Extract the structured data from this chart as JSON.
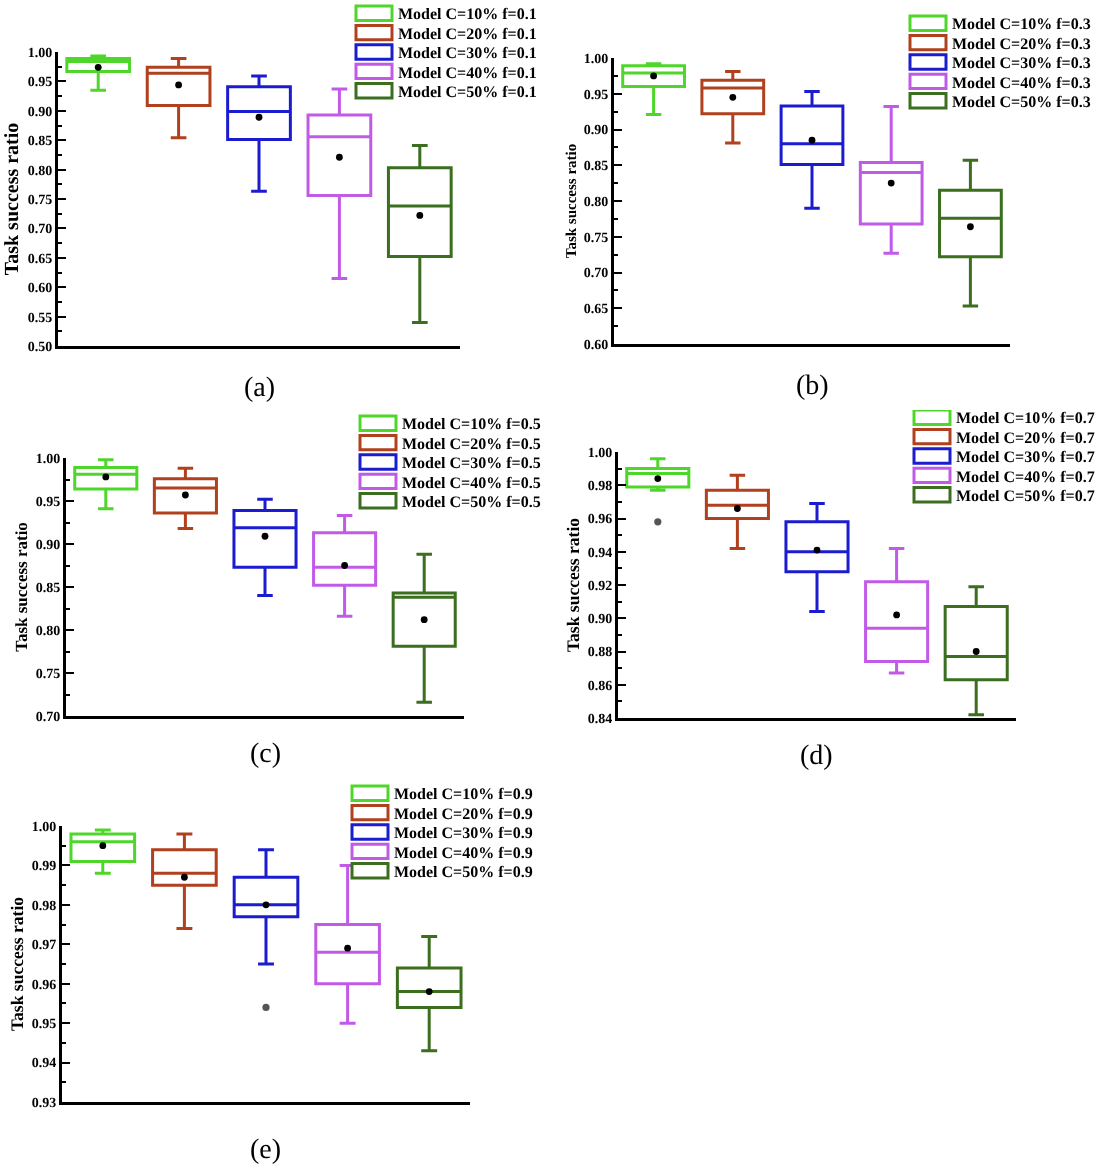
{
  "chart_data": [
    {
      "type": "box",
      "xlabel": "(a)",
      "ylabel": "Task success ratio",
      "categories": [
        null,
        null,
        null,
        null,
        null
      ],
      "ylim": [
        0.5,
        1.0
      ],
      "yticks": [
        {
          "value": 0.5,
          "label": "0.50"
        },
        {
          "value": 0.525,
          "label": null
        },
        0.55,
        {
          "value": 0.575,
          "label": null
        },
        {
          "value": 0.6,
          "label": "0.60"
        },
        {
          "value": 0.625,
          "label": null
        },
        0.65,
        {
          "value": 0.675,
          "label": null
        },
        {
          "value": 0.7,
          "label": "0.70"
        },
        {
          "value": 0.725,
          "label": null
        },
        0.75,
        {
          "value": 0.775,
          "label": null
        },
        {
          "value": 0.8,
          "label": "0.80"
        },
        {
          "value": 0.825,
          "label": null
        },
        0.85,
        {
          "value": 0.875,
          "label": null
        },
        {
          "value": 0.9,
          "label": "0.90"
        },
        {
          "value": 0.925,
          "label": null
        },
        0.95,
        {
          "value": 0.975,
          "label": null
        },
        {
          "value": 1.0,
          "label": "1.00"
        }
      ],
      "tick_labels": "y",
      "legend": "top right",
      "series": [
        {
          "name": "Model C=10% f=0.1",
          "color": "#4fd62b",
          "boxes": [
            {
              "low": 0.935,
              "q1": 0.967,
              "median": 0.984,
              "q3": 0.989,
              "high": 0.993,
              "mean": 0.974
            },
            null,
            null,
            null,
            null
          ]
        },
        {
          "name": "Model C=20% f=0.1",
          "color": "#b0401e",
          "boxes": [
            null,
            {
              "low": 0.854,
              "q1": 0.909,
              "median": 0.964,
              "q3": 0.974,
              "high": 0.989,
              "mean": 0.944
            },
            null,
            null,
            null
          ]
        },
        {
          "name": "Model C=30% f=0.1",
          "color": "#1c1ccf",
          "boxes": [
            null,
            null,
            {
              "low": 0.763,
              "q1": 0.851,
              "median": 0.899,
              "q3": 0.941,
              "high": 0.959,
              "mean": 0.889
            },
            null,
            null
          ]
        },
        {
          "name": "Model C=40% f=0.1",
          "color": "#c25ae8",
          "boxes": [
            null,
            null,
            null,
            {
              "low": 0.615,
              "q1": 0.756,
              "median": 0.856,
              "q3": 0.893,
              "high": 0.937,
              "mean": 0.821
            },
            null
          ]
        },
        {
          "name": "Model C=50% f=0.1",
          "color": "#3b6e1f",
          "boxes": [
            null,
            null,
            null,
            null,
            {
              "low": 0.54,
              "q1": 0.652,
              "median": 0.738,
              "q3": 0.803,
              "high": 0.841,
              "mean": 0.722
            }
          ]
        }
      ]
    },
    {
      "type": "box",
      "xlabel": "(b)",
      "ylabel": "Task success ratio",
      "categories": [
        null,
        null,
        null,
        null,
        null
      ],
      "ylim": [
        0.6,
        1.0
      ],
      "yticks": [
        {
          "value": 0.6,
          "label": "0.60"
        },
        {
          "value": 0.625,
          "label": null
        },
        0.65,
        {
          "value": 0.675,
          "label": null
        },
        {
          "value": 0.7,
          "label": "0.70"
        },
        {
          "value": 0.725,
          "label": null
        },
        0.75,
        {
          "value": 0.775,
          "label": null
        },
        {
          "value": 0.8,
          "label": "0.80"
        },
        {
          "value": 0.825,
          "label": null
        },
        0.85,
        {
          "value": 0.875,
          "label": null
        },
        {
          "value": 0.9,
          "label": "0.90"
        },
        {
          "value": 0.925,
          "label": null
        },
        0.95,
        {
          "value": 0.975,
          "label": null
        },
        {
          "value": 1.0,
          "label": "1.00"
        }
      ],
      "tick_labels": "y",
      "legend": "top right",
      "series": [
        {
          "name": "Model C=10% f=0.3",
          "color": "#4fd62b",
          "boxes": [
            {
              "low": 0.921,
              "q1": 0.96,
              "median": 0.979,
              "q3": 0.989,
              "high": 0.992,
              "mean": 0.975
            },
            null,
            null,
            null,
            null
          ]
        },
        {
          "name": "Model C=20% f=0.3",
          "color": "#b0401e",
          "boxes": [
            null,
            {
              "low": 0.881,
              "q1": 0.922,
              "median": 0.958,
              "q3": 0.969,
              "high": 0.981,
              "mean": 0.945
            },
            null,
            null,
            null
          ]
        },
        {
          "name": "Model C=30% f=0.3",
          "color": "#1c1ccf",
          "boxes": [
            null,
            null,
            {
              "low": 0.79,
              "q1": 0.851,
              "median": 0.88,
              "q3": 0.933,
              "high": 0.953,
              "mean": 0.885
            },
            null,
            null
          ]
        },
        {
          "name": "Model C=40% f=0.3",
          "color": "#c25ae8",
          "boxes": [
            null,
            null,
            null,
            {
              "low": 0.727,
              "q1": 0.768,
              "median": 0.84,
              "q3": 0.854,
              "high": 0.932,
              "mean": 0.825
            },
            null
          ]
        },
        {
          "name": "Model C=50% f=0.3",
          "color": "#3b6e1f",
          "boxes": [
            null,
            null,
            null,
            null,
            {
              "low": 0.653,
              "q1": 0.722,
              "median": 0.776,
              "q3": 0.815,
              "high": 0.857,
              "mean": 0.764
            }
          ]
        }
      ]
    },
    {
      "type": "box",
      "xlabel": "(c)",
      "ylabel": "Task success ratio",
      "categories": [
        null,
        null,
        null,
        null,
        null
      ],
      "ylim": [
        0.7,
        1.0
      ],
      "yticks": [
        {
          "value": 0.7,
          "label": "0.70"
        },
        {
          "value": 0.725,
          "label": null
        },
        0.75,
        {
          "value": 0.775,
          "label": null
        },
        {
          "value": 0.8,
          "label": "0.80"
        },
        {
          "value": 0.825,
          "label": null
        },
        0.85,
        {
          "value": 0.875,
          "label": null
        },
        {
          "value": 0.9,
          "label": "0.90"
        },
        {
          "value": 0.925,
          "label": null
        },
        0.95,
        {
          "value": 0.975,
          "label": null
        },
        {
          "value": 1.0,
          "label": "1.00"
        }
      ],
      "tick_labels": "y",
      "legend": "top right",
      "series": [
        {
          "name": "Model C=10% f=0.5",
          "color": "#4fd62b",
          "boxes": [
            {
              "low": 0.941,
              "q1": 0.964,
              "median": 0.981,
              "q3": 0.989,
              "high": 0.998,
              "mean": 0.978
            },
            null,
            null,
            null,
            null
          ]
        },
        {
          "name": "Model C=20% f=0.5",
          "color": "#b0401e",
          "boxes": [
            null,
            {
              "low": 0.918,
              "q1": 0.936,
              "median": 0.965,
              "q3": 0.976,
              "high": 0.988,
              "mean": 0.957
            },
            null,
            null,
            null
          ]
        },
        {
          "name": "Model C=30% f=0.5",
          "color": "#1c1ccf",
          "boxes": [
            null,
            null,
            {
              "low": 0.84,
              "q1": 0.873,
              "median": 0.919,
              "q3": 0.939,
              "high": 0.952,
              "mean": 0.909
            },
            null,
            null
          ]
        },
        {
          "name": "Model C=40% f=0.5",
          "color": "#c25ae8",
          "boxes": [
            null,
            null,
            null,
            {
              "low": 0.816,
              "q1": 0.852,
              "median": 0.873,
              "q3": 0.913,
              "high": 0.933,
              "mean": 0.875
            },
            null
          ]
        },
        {
          "name": "Model C=50% f=0.5",
          "color": "#3b6e1f",
          "boxes": [
            null,
            null,
            null,
            null,
            {
              "low": 0.716,
              "q1": 0.781,
              "median": 0.838,
              "q3": 0.843,
              "high": 0.888,
              "mean": 0.812
            }
          ]
        }
      ]
    },
    {
      "type": "box",
      "xlabel": "(d)",
      "ylabel": "Task success ratio",
      "categories": [
        null,
        null,
        null,
        null,
        null
      ],
      "ylim": [
        0.84,
        1.0
      ],
      "yticks": [
        0.84,
        {
          "value": 0.85,
          "label": null
        },
        0.86,
        {
          "value": 0.87,
          "label": null
        },
        0.88,
        {
          "value": 0.89,
          "label": null
        },
        {
          "value": 0.9,
          "label": "0.90"
        },
        {
          "value": 0.91,
          "label": null
        },
        0.92,
        {
          "value": 0.93,
          "label": null
        },
        0.94,
        {
          "value": 0.95,
          "label": null
        },
        0.96,
        {
          "value": 0.97,
          "label": null
        },
        0.98,
        {
          "value": 0.99,
          "label": null
        },
        {
          "value": 1.0,
          "label": "1.00"
        }
      ],
      "tick_labels": "y",
      "legend": "top right",
      "series": [
        {
          "name": "Model C=10% f=0.7",
          "color": "#4fd62b",
          "boxes": [
            {
              "low": 0.977,
              "q1": 0.979,
              "median": 0.987,
              "q3": 0.99,
              "high": 0.996,
              "mean": 0.984,
              "outliers": [
                0.958
              ]
            },
            null,
            null,
            null,
            null
          ]
        },
        {
          "name": "Model C=20% f=0.7",
          "color": "#b0401e",
          "boxes": [
            null,
            {
              "low": 0.942,
              "q1": 0.96,
              "median": 0.968,
              "q3": 0.977,
              "high": 0.986,
              "mean": 0.966
            },
            null,
            null,
            null
          ]
        },
        {
          "name": "Model C=30% f=0.7",
          "color": "#1c1ccf",
          "boxes": [
            null,
            null,
            {
              "low": 0.904,
              "q1": 0.928,
              "median": 0.94,
              "q3": 0.958,
              "high": 0.969,
              "mean": 0.941
            },
            null,
            null
          ]
        },
        {
          "name": "Model C=40% f=0.7",
          "color": "#c25ae8",
          "boxes": [
            null,
            null,
            null,
            {
              "low": 0.867,
              "q1": 0.874,
              "median": 0.894,
              "q3": 0.922,
              "high": 0.942,
              "mean": 0.902
            },
            null
          ]
        },
        {
          "name": "Model C=50% f=0.7",
          "color": "#3b6e1f",
          "boxes": [
            null,
            null,
            null,
            null,
            {
              "low": 0.842,
              "q1": 0.863,
              "median": 0.877,
              "q3": 0.907,
              "high": 0.919,
              "mean": 0.88
            }
          ]
        }
      ]
    },
    {
      "type": "box",
      "xlabel": "(e)",
      "ylabel": "Task success ratio",
      "categories": [
        null,
        null,
        null,
        null,
        null
      ],
      "ylim": [
        0.93,
        1.0
      ],
      "yticks": [
        0.93,
        {
          "value": 0.935,
          "label": null
        },
        0.94,
        {
          "value": 0.945,
          "label": null
        },
        0.95,
        {
          "value": 0.955,
          "label": null
        },
        0.96,
        {
          "value": 0.965,
          "label": null
        },
        0.97,
        {
          "value": 0.975,
          "label": null
        },
        0.98,
        {
          "value": 0.985,
          "label": null
        },
        0.99,
        {
          "value": 0.995,
          "label": null
        },
        {
          "value": 1.0,
          "label": "1.00"
        }
      ],
      "tick_labels": "y",
      "legend": "top right",
      "series": [
        {
          "name": "Model C=10% f=0.9",
          "color": "#4fd62b",
          "boxes": [
            {
              "low": 0.988,
              "q1": 0.991,
              "median": 0.996,
              "q3": 0.998,
              "high": 0.999,
              "mean": 0.995
            },
            null,
            null,
            null,
            null
          ]
        },
        {
          "name": "Model C=20% f=0.9",
          "color": "#b0401e",
          "boxes": [
            null,
            {
              "low": 0.974,
              "q1": 0.985,
              "median": 0.988,
              "q3": 0.994,
              "high": 0.998,
              "mean": 0.987
            },
            null,
            null,
            null
          ]
        },
        {
          "name": "Model C=30% f=0.9",
          "color": "#1c1ccf",
          "boxes": [
            null,
            null,
            {
              "low": 0.965,
              "q1": 0.977,
              "median": 0.98,
              "q3": 0.987,
              "high": 0.994,
              "mean": 0.98,
              "outliers": [
                0.954
              ]
            },
            null,
            null
          ]
        },
        {
          "name": "Model C=40% f=0.9",
          "color": "#c25ae8",
          "boxes": [
            null,
            null,
            null,
            {
              "low": 0.95,
              "q1": 0.96,
              "median": 0.968,
              "q3": 0.975,
              "high": 0.99,
              "mean": 0.969
            },
            null
          ]
        },
        {
          "name": "Model C=50% f=0.9",
          "color": "#3b6e1f",
          "boxes": [
            null,
            null,
            null,
            null,
            {
              "low": 0.943,
              "q1": 0.954,
              "median": 0.958,
              "q3": 0.964,
              "high": 0.972,
              "mean": 0.958
            }
          ]
        }
      ]
    }
  ]
}
